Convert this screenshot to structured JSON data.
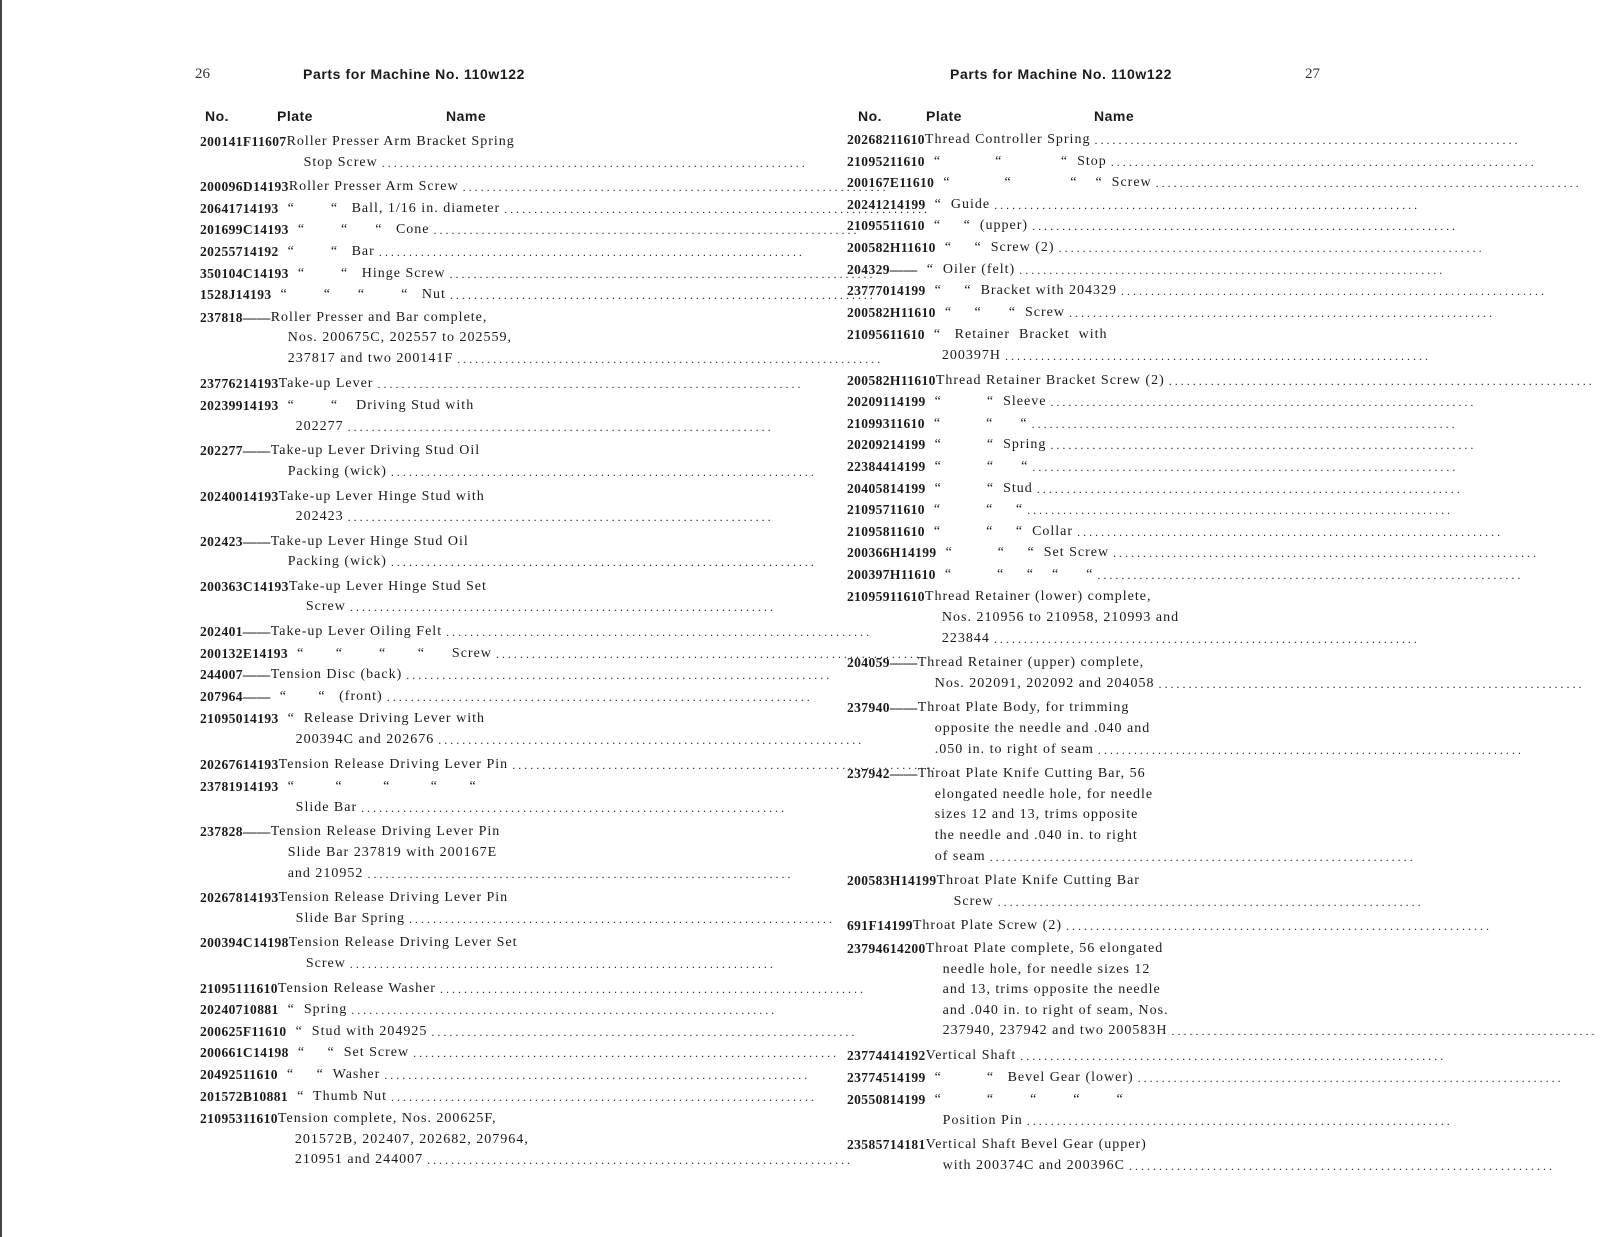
{
  "left_page": {
    "page_number": "26",
    "title": "Parts for Machine No. 110w122",
    "columns": {
      "no": "No.",
      "plate": "Plate",
      "name": "Name"
    },
    "rows": [
      {
        "no": "200141F",
        "plate": "11607",
        "lines": [
          "Roller Presser Arm Bracket Spring",
          "Stop Screw"
        ]
      },
      {
        "no": "200096D",
        "plate": "14193",
        "lines": [
          "Roller Presser Arm Screw"
        ]
      },
      {
        "no": "206417",
        "plate": "14193",
        "lines": [
          "  “        “   Ball, 1/16 in. diameter"
        ]
      },
      {
        "no": "201699C",
        "plate": "14193",
        "lines": [
          "  “        “      “   Cone"
        ]
      },
      {
        "no": "202557",
        "plate": "14192",
        "lines": [
          "  “        “   Bar"
        ]
      },
      {
        "no": "350104C",
        "plate": "14193",
        "lines": [
          "  “        “   Hinge Screw"
        ]
      },
      {
        "no": "1528J",
        "plate": "14193",
        "lines": [
          "  “        “      “        “   Nut"
        ]
      },
      {
        "no": "237818",
        "plate": "——",
        "lines": [
          "Roller Presser and Bar complete,",
          "Nos. 200675C, 202557 to 202559,",
          "237817 and two 200141F"
        ]
      },
      {
        "no": "237762",
        "plate": "14193",
        "lines": [
          "Take-up Lever"
        ]
      },
      {
        "no": "202399",
        "plate": "14193",
        "lines": [
          "  “        “    Driving Stud with",
          "202277"
        ]
      },
      {
        "no": "202277",
        "plate": "——",
        "lines": [
          "Take-up Lever Driving Stud Oil",
          "Packing (wick)"
        ]
      },
      {
        "no": "202400",
        "plate": "14193",
        "lines": [
          "Take-up Lever Hinge Stud with",
          "202423"
        ]
      },
      {
        "no": "202423",
        "plate": "——",
        "lines": [
          "Take-up Lever Hinge Stud Oil",
          "Packing (wick)"
        ]
      },
      {
        "no": "200363C",
        "plate": "14193",
        "lines": [
          "Take-up Lever Hinge Stud Set",
          "Screw"
        ]
      },
      {
        "no": "202401",
        "plate": "——",
        "lines": [
          "Take-up Lever Oiling Felt"
        ]
      },
      {
        "no": "200132E",
        "plate": "14193",
        "lines": [
          "  “       “        “       “      Screw"
        ]
      },
      {
        "no": "244007",
        "plate": "——",
        "lines": [
          "Tension Disc (back)"
        ]
      },
      {
        "no": "207964",
        "plate": "——",
        "lines": [
          "  “       “   (front)"
        ]
      },
      {
        "no": "210950",
        "plate": "14193",
        "lines": [
          "  “  Release Driving Lever with",
          "200394C and 202676"
        ]
      },
      {
        "no": "202676",
        "plate": "14193",
        "lines": [
          "Tension Release Driving Lever Pin"
        ]
      },
      {
        "no": "237819",
        "plate": "14193",
        "lines": [
          "  “         “         “         “       “",
          "Slide Bar"
        ]
      },
      {
        "no": "237828",
        "plate": "——",
        "lines": [
          "Tension Release Driving Lever Pin",
          "Slide Bar 237819 with 200167E",
          "and 210952"
        ]
      },
      {
        "no": "202678",
        "plate": "14193",
        "lines": [
          "Tension Release Driving Lever Pin",
          "Slide Bar Spring"
        ]
      },
      {
        "no": "200394C",
        "plate": "14198",
        "lines": [
          "Tension Release Driving Lever Set",
          "Screw"
        ]
      },
      {
        "no": "210951",
        "plate": "11610",
        "lines": [
          "Tension Release Washer"
        ]
      },
      {
        "no": "202407",
        "plate": "10881",
        "lines": [
          "  “  Spring"
        ]
      },
      {
        "no": "200625F",
        "plate": "11610",
        "lines": [
          "  “  Stud with 204925"
        ]
      },
      {
        "no": "200661C",
        "plate": "14198",
        "lines": [
          "  “     “  Set Screw"
        ]
      },
      {
        "no": "204925",
        "plate": "11610",
        "lines": [
          "  “     “  Washer"
        ]
      },
      {
        "no": "201572B",
        "plate": "10881",
        "lines": [
          "  “  Thumb Nut"
        ]
      },
      {
        "no": "210953",
        "plate": "11610",
        "lines": [
          "Tension complete, Nos. 200625F,",
          "201572B, 202407, 202682, 207964,",
          "210951 and 244007"
        ]
      }
    ]
  },
  "right_page": {
    "page_number": "27",
    "title": "Parts for Machine No. 110w122",
    "columns": {
      "no": "No.",
      "plate": "Plate",
      "name": "Name"
    },
    "rows": [
      {
        "no": "202682",
        "plate": "11610",
        "lines": [
          "Thread Controller Spring"
        ]
      },
      {
        "no": "210952",
        "plate": "11610",
        "lines": [
          "  “            “             “  Stop"
        ]
      },
      {
        "no": "200167E",
        "plate": "11610",
        "lines": [
          "  “            “             “    “  Screw"
        ]
      },
      {
        "no": "202412",
        "plate": "14199",
        "lines": [
          "  “  Guide"
        ]
      },
      {
        "no": "210955",
        "plate": "11610",
        "lines": [
          "  “     “  (upper)"
        ]
      },
      {
        "no": "200582H",
        "plate": "11610",
        "lines": [
          "  “     “  Screw (2)"
        ]
      },
      {
        "no": "204329",
        "plate": "——",
        "lines": [
          "  “  Oiler (felt)"
        ]
      },
      {
        "no": "237770",
        "plate": "14199",
        "lines": [
          "  “     “  Bracket with 204329"
        ]
      },
      {
        "no": "200582H",
        "plate": "11610",
        "lines": [
          "  “     “      “  Screw"
        ]
      },
      {
        "no": "210956",
        "plate": "11610",
        "lines": [
          "  “   Retainer  Bracket  with",
          "200397H"
        ]
      },
      {
        "no": "200582H",
        "plate": "11610",
        "lines": [
          "Thread Retainer Bracket Screw (2)"
        ]
      },
      {
        "no": "202091",
        "plate": "14199",
        "lines": [
          "  “          “  Sleeve"
        ]
      },
      {
        "no": "210993",
        "plate": "11610",
        "lines": [
          "  “          “      “"
        ]
      },
      {
        "no": "202092",
        "plate": "14199",
        "lines": [
          "  “          “  Spring"
        ]
      },
      {
        "no": "223844",
        "plate": "14199",
        "lines": [
          "  “          “      “"
        ]
      },
      {
        "no": "204058",
        "plate": "14199",
        "lines": [
          "  “          “  Stud"
        ]
      },
      {
        "no": "210957",
        "plate": "11610",
        "lines": [
          "  “          “     “"
        ]
      },
      {
        "no": "210958",
        "plate": "11610",
        "lines": [
          "  “          “     “  Collar"
        ]
      },
      {
        "no": "200366H",
        "plate": "14199",
        "lines": [
          "  “          “     “  Set Screw"
        ]
      },
      {
        "no": "200397H",
        "plate": "11610",
        "lines": [
          "  “          “     “    “      “"
        ]
      },
      {
        "no": "210959",
        "plate": "11610",
        "lines": [
          "Thread Retainer (lower) complete,",
          "Nos. 210956 to 210958, 210993 and",
          "223844"
        ]
      },
      {
        "no": "204059",
        "plate": "——",
        "lines": [
          "Thread Retainer (upper) complete,",
          "Nos. 202091, 202092 and 204058"
        ]
      },
      {
        "no": "237940",
        "plate": "——",
        "lines": [
          "Throat Plate Body, for trimming",
          "opposite the needle and .040 and",
          ".050 in. to right of seam"
        ]
      },
      {
        "no": "237942",
        "plate": "——",
        "lines": [
          "Throat Plate Knife Cutting Bar, 56",
          "elongated needle hole, for needle",
          "sizes 12 and 13, trims opposite",
          "the needle and .040 in. to right",
          "of seam"
        ]
      },
      {
        "no": "200583H",
        "plate": "14199",
        "lines": [
          "Throat Plate Knife Cutting Bar",
          "Screw"
        ]
      },
      {
        "no": "691F",
        "plate": "14199",
        "lines": [
          "Throat Plate Screw (2)"
        ]
      },
      {
        "no": "237946",
        "plate": "14200",
        "lines": [
          "Throat Plate complete, 56 elongated",
          "needle hole, for needle sizes 12",
          "and 13, trims opposite the needle",
          "and .040 in. to right of seam, Nos.",
          "237940, 237942 and two 200583H"
        ]
      },
      {
        "no": "237744",
        "plate": "14192",
        "lines": [
          "Vertical Shaft"
        ]
      },
      {
        "no": "237745",
        "plate": "14199",
        "lines": [
          "  “          “   Bevel Gear (lower)"
        ]
      },
      {
        "no": "205508",
        "plate": "14199",
        "lines": [
          "  “          “        “        “        “",
          "Position Pin"
        ]
      },
      {
        "no": "235857",
        "plate": "14181",
        "lines": [
          "Vertical Shaft Bevel Gear (upper)",
          "with 200374C and 200396C"
        ]
      }
    ]
  }
}
